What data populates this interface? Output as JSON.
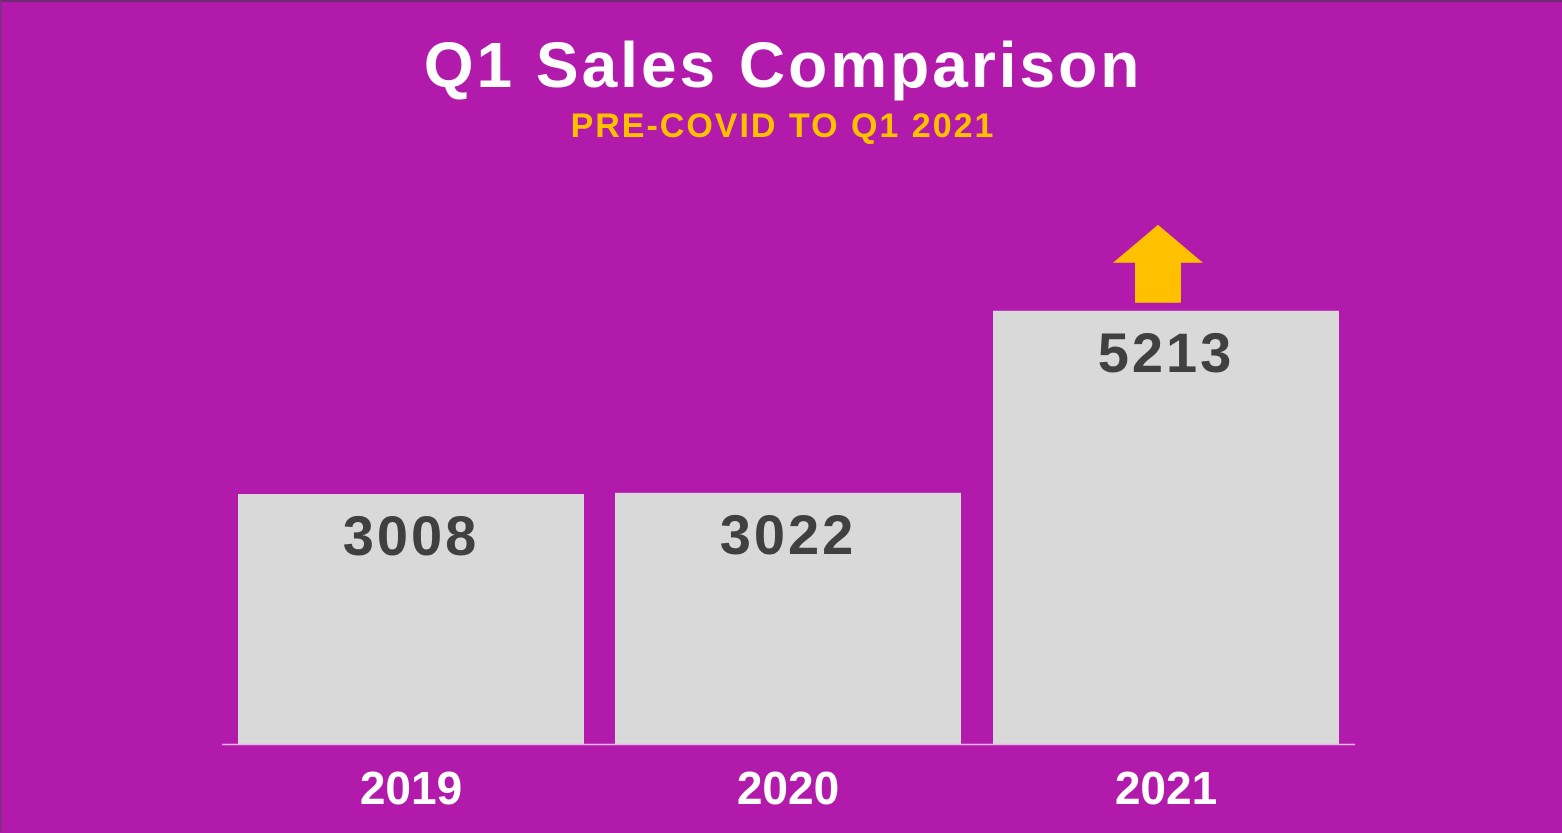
{
  "chart_data": {
    "type": "bar",
    "title": "Q1 Sales Comparison",
    "subtitle": "PRE-COVID TO Q1 2021",
    "categories": [
      "2019",
      "2020",
      "2021"
    ],
    "values": [
      3008,
      3022,
      5213
    ],
    "data_labels": [
      "3008",
      "3022",
      "5213"
    ],
    "xlabel": "",
    "ylabel": "",
    "ylim": [
      0,
      5800
    ],
    "grid": false,
    "legend": "none",
    "annotations": [
      {
        "type": "arrow-up-icon",
        "category": "2021",
        "color": "#ffc000"
      }
    ],
    "colors": {
      "background": "#b21aab",
      "bar": "#d9d9d9",
      "bar_label": "#404040",
      "category_label": "#ffffff",
      "title": "#ffffff",
      "subtitle": "#ffc000",
      "axis_line": "#e6b3e3",
      "arrow": "#ffc000"
    }
  }
}
